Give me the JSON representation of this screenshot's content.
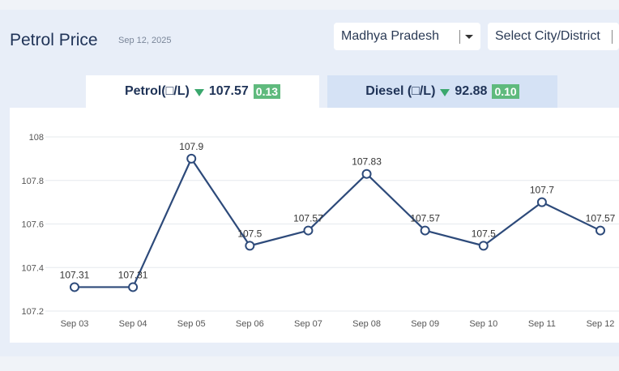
{
  "header": {
    "title": "Petrol Price",
    "date": "Sep 12, 2025"
  },
  "filters": {
    "state": "Madhya Pradesh",
    "city_placeholder": "Select City/District"
  },
  "tabs": [
    {
      "label": "Petrol(□/L)",
      "price": "107.57",
      "change": "0.13",
      "trend": "down",
      "active": true
    },
    {
      "label": "Diesel (□/L)",
      "price": "92.88",
      "change": "0.10",
      "trend": "down",
      "active": false
    }
  ],
  "colors": {
    "line": "#2d4a7a",
    "down_arrow": "#3aa76d",
    "change_badge": "#5fba7d",
    "active_tab": "#ffffff",
    "inactive_tab": "#d5e2f5"
  },
  "chart_data": {
    "type": "line",
    "categories": [
      "Sep 03",
      "Sep 04",
      "Sep 05",
      "Sep 06",
      "Sep 07",
      "Sep 08",
      "Sep 09",
      "Sep 10",
      "Sep 11",
      "Sep 12"
    ],
    "values": [
      107.31,
      107.31,
      107.9,
      107.5,
      107.57,
      107.83,
      107.57,
      107.5,
      107.7,
      107.57
    ],
    "data_labels": [
      "107.31",
      "107.31",
      "107.9",
      "107.5",
      "107.57",
      "107.83",
      "107.57",
      "107.5",
      "107.7",
      "107.57"
    ],
    "yticks": [
      "107.2",
      "107.4",
      "107.6",
      "107.8",
      "108"
    ],
    "ylim": [
      107.2,
      108
    ],
    "grid": true,
    "title": "",
    "xlabel": "",
    "ylabel": ""
  }
}
